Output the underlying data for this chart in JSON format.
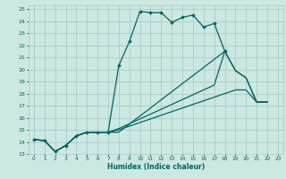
{
  "xlabel": "Humidex (Indice chaleur)",
  "bg_color": "#cce8e0",
  "grid_color": "#aacccc",
  "line_color": "#006666",
  "xlim": [
    -0.5,
    23.5
  ],
  "ylim": [
    13,
    25.3
  ],
  "xticks": [
    0,
    1,
    2,
    3,
    4,
    5,
    6,
    7,
    8,
    9,
    10,
    11,
    12,
    13,
    14,
    15,
    16,
    17,
    18,
    19,
    20,
    21,
    22,
    23
  ],
  "yticks": [
    13,
    14,
    15,
    16,
    17,
    18,
    19,
    20,
    21,
    22,
    23,
    24,
    25
  ],
  "line1_x": [
    0,
    1,
    2,
    3,
    4,
    5,
    6,
    7,
    8,
    9,
    10,
    11,
    12,
    13,
    14,
    15,
    16,
    17,
    18
  ],
  "line1_y": [
    14.2,
    14.1,
    13.2,
    13.7,
    14.5,
    14.8,
    14.8,
    14.8,
    20.3,
    22.3,
    24.8,
    24.7,
    24.7,
    23.9,
    24.3,
    24.5,
    23.5,
    23.8,
    21.5
  ],
  "line2_x": [
    0,
    1,
    2,
    3,
    4,
    5,
    6,
    7,
    8,
    18,
    19,
    20,
    21,
    22
  ],
  "line2_y": [
    14.2,
    14.1,
    13.2,
    13.7,
    14.5,
    14.8,
    14.8,
    14.8,
    14.8,
    21.5,
    19.9,
    19.3,
    17.3,
    17.3
  ],
  "line3_x": [
    0,
    1,
    2,
    3,
    4,
    5,
    6,
    7,
    8,
    9,
    10,
    11,
    12,
    13,
    14,
    15,
    16,
    17,
    18,
    19,
    20,
    21,
    22
  ],
  "line3_y": [
    14.2,
    14.1,
    13.2,
    13.7,
    14.5,
    14.8,
    14.8,
    14.8,
    15.1,
    15.5,
    15.9,
    16.3,
    16.7,
    17.1,
    17.5,
    17.9,
    18.3,
    18.7,
    21.5,
    19.9,
    19.3,
    17.3,
    17.3
  ],
  "line4_x": [
    0,
    1,
    2,
    3,
    4,
    5,
    6,
    7,
    8,
    9,
    10,
    11,
    12,
    13,
    14,
    15,
    16,
    17,
    18,
    19,
    20,
    21,
    22
  ],
  "line4_y": [
    14.2,
    14.1,
    13.2,
    13.7,
    14.5,
    14.8,
    14.8,
    14.8,
    15.0,
    15.3,
    15.6,
    15.9,
    16.2,
    16.5,
    16.8,
    17.1,
    17.4,
    17.7,
    18.0,
    18.3,
    18.3,
    17.3,
    17.3
  ]
}
